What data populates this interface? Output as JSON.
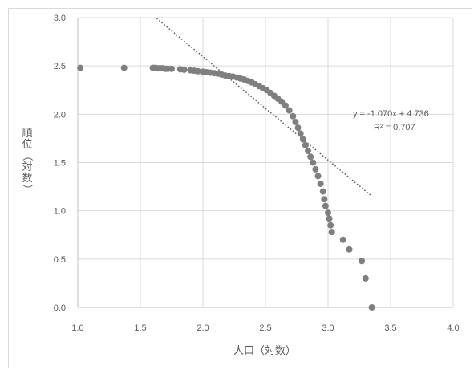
{
  "chart_data": {
    "type": "scatter",
    "title": "",
    "xlabel": "人口（対数）",
    "ylabel": "順位（対数）",
    "xlim": [
      1.0,
      4.0
    ],
    "ylim": [
      0.0,
      3.0
    ],
    "x_ticks": [
      "1.0",
      "1.5",
      "2.0",
      "2.5",
      "3.0",
      "3.5",
      "4.0"
    ],
    "y_ticks": [
      "0.0",
      "0.5",
      "1.0",
      "1.5",
      "2.0",
      "2.5",
      "3.0"
    ],
    "grid": true,
    "point_color": "#7f7f7f",
    "trendline_color": "#595959",
    "trendline": {
      "slope": -1.07,
      "intercept": 4.736,
      "x_range": [
        1.63,
        3.35
      ],
      "equation_label": "y = -1.070x + 4.736",
      "r2_label": "R² = 0.707"
    },
    "points": [
      [
        1.02,
        2.48
      ],
      [
        1.37,
        2.48
      ],
      [
        1.6,
        2.48
      ],
      [
        1.62,
        2.48
      ],
      [
        1.64,
        2.475
      ],
      [
        1.66,
        2.475
      ],
      [
        1.68,
        2.475
      ],
      [
        1.7,
        2.47
      ],
      [
        1.72,
        2.47
      ],
      [
        1.75,
        2.47
      ],
      [
        1.82,
        2.465
      ],
      [
        1.85,
        2.46
      ],
      [
        1.9,
        2.455
      ],
      [
        1.93,
        2.45
      ],
      [
        1.96,
        2.445
      ],
      [
        2.0,
        2.44
      ],
      [
        2.03,
        2.435
      ],
      [
        2.06,
        2.43
      ],
      [
        2.09,
        2.425
      ],
      [
        2.12,
        2.42
      ],
      [
        2.15,
        2.41
      ],
      [
        2.18,
        2.4
      ],
      [
        2.21,
        2.395
      ],
      [
        2.24,
        2.39
      ],
      [
        2.27,
        2.38
      ],
      [
        2.3,
        2.37
      ],
      [
        2.33,
        2.36
      ],
      [
        2.36,
        2.345
      ],
      [
        2.39,
        2.33
      ],
      [
        2.42,
        2.31
      ],
      [
        2.45,
        2.29
      ],
      [
        2.48,
        2.27
      ],
      [
        2.51,
        2.25
      ],
      [
        2.54,
        2.22
      ],
      [
        2.57,
        2.19
      ],
      [
        2.6,
        2.16
      ],
      [
        2.63,
        2.13
      ],
      [
        2.66,
        2.09
      ],
      [
        2.69,
        2.04
      ],
      [
        2.72,
        1.98
      ],
      [
        2.74,
        1.92
      ],
      [
        2.76,
        1.86
      ],
      [
        2.78,
        1.8
      ],
      [
        2.8,
        1.74
      ],
      [
        2.82,
        1.68
      ],
      [
        2.84,
        1.62
      ],
      [
        2.86,
        1.56
      ],
      [
        2.88,
        1.5
      ],
      [
        2.9,
        1.43
      ],
      [
        2.92,
        1.36
      ],
      [
        2.94,
        1.28
      ],
      [
        2.96,
        1.2
      ],
      [
        2.97,
        1.12
      ],
      [
        2.98,
        1.05
      ],
      [
        3.0,
        0.98
      ],
      [
        3.01,
        0.92
      ],
      [
        3.02,
        0.85
      ],
      [
        3.03,
        0.78
      ],
      [
        3.12,
        0.7
      ],
      [
        3.17,
        0.6
      ],
      [
        3.27,
        0.48
      ],
      [
        3.3,
        0.3
      ],
      [
        3.35,
        0.0
      ]
    ]
  }
}
